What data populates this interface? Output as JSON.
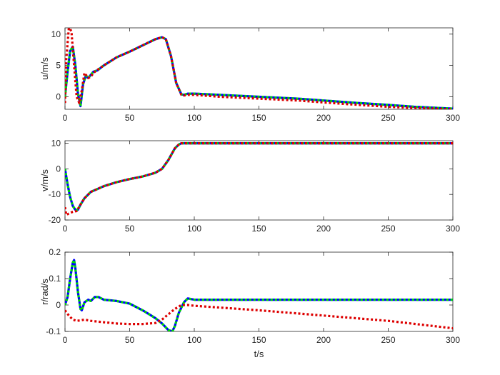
{
  "chart_data": [
    {
      "type": "line",
      "ylabel": "u/m/s",
      "xlabel": "",
      "xlim": [
        0,
        300
      ],
      "ylim": [
        -2,
        11
      ],
      "xticks": [
        0,
        50,
        100,
        150,
        200,
        250,
        300
      ],
      "yticks": [
        0,
        5,
        10
      ],
      "series": [
        {
          "color": "#0000ff",
          "style": "solid",
          "x": [
            0,
            2,
            4,
            6,
            8,
            10,
            12,
            14,
            16,
            18,
            20,
            22,
            25,
            30,
            40,
            50,
            60,
            70,
            75,
            78,
            82,
            86,
            90,
            92,
            95,
            100,
            120,
            150,
            180,
            200,
            220,
            250,
            270,
            300
          ],
          "y": [
            0,
            4,
            7.3,
            8,
            5,
            0.5,
            -1.5,
            2,
            3.3,
            3,
            3.5,
            4,
            4.2,
            5,
            6.3,
            7.2,
            8.2,
            9.2,
            9.5,
            9.2,
            6.5,
            2.2,
            0.4,
            0.3,
            0.5,
            0.5,
            0.3,
            0,
            -0.3,
            -0.6,
            -0.9,
            -1.3,
            -1.6,
            -1.9
          ]
        },
        {
          "color": "#00dd00",
          "style": "dotted",
          "x": [
            0,
            2,
            4,
            6,
            8,
            10,
            12,
            14,
            16,
            18,
            20,
            22,
            25,
            30,
            40,
            50,
            60,
            70,
            75,
            78,
            82,
            86,
            90,
            92,
            95,
            100,
            120,
            150,
            180,
            200,
            220,
            250,
            270,
            300
          ],
          "y": [
            0,
            4,
            7.3,
            8,
            5,
            0.5,
            -1.5,
            2,
            3.3,
            3,
            3.5,
            4,
            4.2,
            5,
            6.3,
            7.2,
            8.2,
            9.2,
            9.5,
            9.2,
            6.5,
            2.2,
            0.4,
            0.3,
            0.5,
            0.5,
            0.3,
            0,
            -0.3,
            -0.6,
            -0.9,
            -1.3,
            -1.6,
            -1.9
          ]
        },
        {
          "color": "#dd0000",
          "style": "dotted",
          "x": [
            0,
            1,
            3,
            5,
            7,
            9,
            11,
            13,
            15,
            18,
            20,
            22,
            25,
            30,
            40,
            50,
            60,
            70,
            75,
            78,
            82,
            86,
            90,
            92,
            95,
            100,
            120,
            150,
            180,
            200,
            220,
            250,
            270,
            300
          ],
          "y": [
            -1,
            6,
            11,
            10.5,
            5,
            0,
            -1,
            1,
            3.8,
            3,
            3.2,
            3.8,
            4.3,
            5,
            6.3,
            7.2,
            8.2,
            9.2,
            9.5,
            9.2,
            6.5,
            2.2,
            0.3,
            0.2,
            0.3,
            0.3,
            0,
            -0.3,
            -0.6,
            -0.9,
            -1.2,
            -1.6,
            -1.8,
            -2
          ]
        }
      ]
    },
    {
      "type": "line",
      "ylabel": "v/m/s",
      "xlabel": "",
      "xlim": [
        0,
        300
      ],
      "ylim": [
        -20,
        11
      ],
      "xticks": [
        0,
        50,
        100,
        150,
        200,
        250,
        300
      ],
      "yticks": [
        -20,
        -10,
        0,
        10
      ],
      "series": [
        {
          "color": "#0000ff",
          "style": "solid",
          "x": [
            0,
            2,
            4,
            6,
            8,
            10,
            12,
            15,
            20,
            30,
            40,
            50,
            60,
            70,
            75,
            80,
            85,
            88,
            90,
            95,
            100,
            150,
            200,
            250,
            300
          ],
          "y": [
            0,
            -6,
            -11,
            -14.5,
            -16,
            -16,
            -14,
            -11.5,
            -9,
            -6.8,
            -5.2,
            -4,
            -3,
            -1.5,
            0,
            3.5,
            8,
            9.5,
            10,
            10,
            10,
            10,
            10,
            10,
            10
          ]
        },
        {
          "color": "#00dd00",
          "style": "dotted",
          "x": [
            0,
            2,
            4,
            6,
            8,
            10,
            12,
            15,
            20,
            30,
            40,
            50,
            60,
            70,
            75,
            80,
            85,
            88,
            90,
            95,
            100,
            150,
            200,
            250,
            300
          ],
          "y": [
            0,
            -6,
            -11,
            -14.5,
            -16,
            -16,
            -14,
            -11.5,
            -9,
            -6.8,
            -5.2,
            -4,
            -3,
            -1.5,
            0,
            3.5,
            8,
            9.5,
            10,
            10,
            10,
            10,
            10,
            10,
            10
          ]
        },
        {
          "color": "#dd0000",
          "style": "dotted",
          "x": [
            0,
            1,
            3,
            6,
            9,
            12,
            15,
            20,
            30,
            40,
            50,
            60,
            70,
            75,
            80,
            85,
            88,
            90,
            95,
            100,
            150,
            200,
            250,
            300
          ],
          "y": [
            -15,
            -18,
            -17.5,
            -16.8,
            -16.5,
            -14,
            -11.5,
            -9,
            -6.8,
            -5.2,
            -4,
            -3,
            -1.5,
            0,
            3.5,
            8,
            9.5,
            10,
            10,
            10,
            10,
            10,
            10,
            10
          ]
        }
      ]
    },
    {
      "type": "line",
      "ylabel": "r/rad/s",
      "xlabel": "t/s",
      "xlim": [
        0,
        300
      ],
      "ylim": [
        -0.1,
        0.2
      ],
      "xticks": [
        0,
        50,
        100,
        150,
        200,
        250,
        300
      ],
      "yticks": [
        -0.1,
        0,
        0.1,
        0.2
      ],
      "series": [
        {
          "color": "#0000ff",
          "style": "solid",
          "x": [
            0,
            2,
            4,
            6,
            7,
            8,
            10,
            12,
            13,
            15,
            18,
            20,
            23,
            26,
            30,
            40,
            50,
            60,
            65,
            70,
            75,
            80,
            83,
            85,
            88,
            92,
            95,
            100,
            150,
            200,
            250,
            300
          ],
          "y": [
            0,
            0.03,
            0.1,
            0.16,
            0.17,
            0.14,
            0.05,
            -0.015,
            -0.02,
            0.01,
            0.02,
            0.015,
            0.03,
            0.03,
            0.02,
            0.015,
            0.005,
            -0.02,
            -0.035,
            -0.05,
            -0.07,
            -0.095,
            -0.1,
            -0.08,
            -0.03,
            0.01,
            0.025,
            0.02,
            0.02,
            0.02,
            0.02,
            0.02
          ]
        },
        {
          "color": "#00dd00",
          "style": "dotted",
          "x": [
            0,
            2,
            4,
            6,
            7,
            8,
            10,
            12,
            13,
            15,
            18,
            20,
            23,
            26,
            30,
            40,
            50,
            60,
            65,
            70,
            75,
            80,
            83,
            85,
            88,
            92,
            95,
            100,
            150,
            200,
            250,
            300
          ],
          "y": [
            0,
            0.03,
            0.1,
            0.16,
            0.17,
            0.14,
            0.05,
            -0.015,
            -0.02,
            0.01,
            0.02,
            0.015,
            0.03,
            0.03,
            0.02,
            0.015,
            0.005,
            -0.02,
            -0.035,
            -0.05,
            -0.07,
            -0.095,
            -0.1,
            -0.08,
            -0.03,
            0.01,
            0.025,
            0.02,
            0.02,
            0.02,
            0.02,
            0.02
          ]
        },
        {
          "color": "#dd0000",
          "style": "dotted",
          "x": [
            0,
            3,
            6,
            9,
            12,
            15,
            20,
            30,
            40,
            50,
            60,
            70,
            75,
            80,
            85,
            90,
            95,
            100,
            150,
            200,
            250,
            300
          ],
          "y": [
            -0.02,
            -0.04,
            -0.055,
            -0.06,
            -0.058,
            -0.055,
            -0.06,
            -0.065,
            -0.07,
            -0.072,
            -0.072,
            -0.068,
            -0.055,
            -0.035,
            -0.015,
            0,
            0,
            -0.003,
            -0.02,
            -0.04,
            -0.06,
            -0.088
          ]
        }
      ]
    }
  ]
}
